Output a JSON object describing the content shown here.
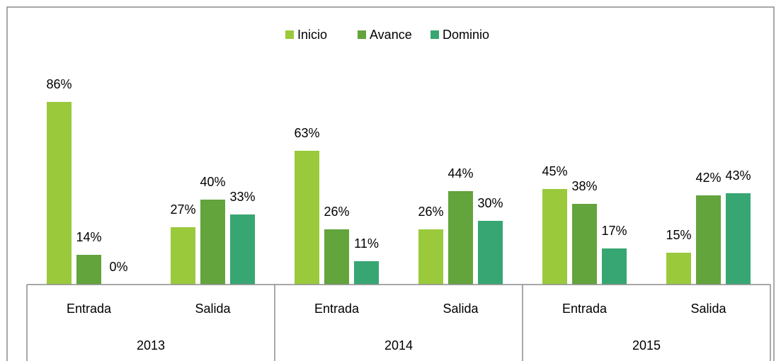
{
  "chart_data": {
    "type": "bar",
    "categories": [
      "Entrada",
      "Salida",
      "Entrada",
      "Salida",
      "Entrada",
      "Salida"
    ],
    "groups": [
      "2013",
      "2014",
      "2015"
    ],
    "series": [
      {
        "name": "Inicio",
        "color": "#9aca3c",
        "values": [
          86,
          27,
          63,
          26,
          45,
          15
        ],
        "value_labels": [
          "86%",
          "27%",
          "63%",
          "26%",
          "45%",
          "15%"
        ]
      },
      {
        "name": "Avance",
        "color": "#63a43c",
        "values": [
          14,
          40,
          26,
          44,
          38,
          42
        ],
        "value_labels": [
          "14%",
          "40%",
          "26%",
          "44%",
          "38%",
          "42%"
        ]
      },
      {
        "name": "Dominio",
        "color": "#37a673",
        "values": [
          0,
          33,
          11,
          30,
          17,
          43
        ],
        "value_labels": [
          "0%",
          "33%",
          "11%",
          "30%",
          "17%",
          "43%"
        ]
      }
    ],
    "legend": "top"
  }
}
